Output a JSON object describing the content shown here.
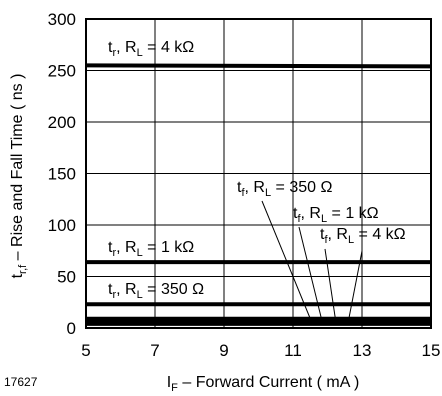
{
  "figure_id": "17627",
  "chart_data": {
    "type": "line",
    "xlabel": {
      "main": "I",
      "sub": "F",
      "rest": " – Forward Current ( mA )"
    },
    "ylabel": {
      "main": "t",
      "sub": "r,f",
      "rest": " – Rise and Fall Time ( ns )"
    },
    "xlim": [
      5,
      15
    ],
    "ylim": [
      0,
      300
    ],
    "x_ticks": [
      5,
      7,
      9,
      11,
      13,
      15
    ],
    "y_ticks": [
      0,
      50,
      100,
      150,
      200,
      250,
      300
    ],
    "grid": true,
    "series": [
      {
        "name": "tr, RL = 4 kΩ",
        "x": [
          5,
          15
        ],
        "y": [
          255,
          254
        ]
      },
      {
        "name": "tr, RL = 1 kΩ",
        "x": [
          5,
          15
        ],
        "y": [
          64,
          64
        ]
      },
      {
        "name": "tr, RL = 350 Ω",
        "x": [
          5,
          15
        ],
        "y": [
          23,
          23
        ]
      },
      {
        "name": "tf, RL = 350 Ω",
        "x": [
          5,
          15
        ],
        "y": [
          9,
          9
        ]
      },
      {
        "name": "tf, RL = 1 kΩ",
        "x": [
          5,
          15
        ],
        "y": [
          6,
          6
        ]
      },
      {
        "name": "tf, RL = 4 kΩ",
        "x": [
          5,
          15
        ],
        "y": [
          4,
          4
        ]
      }
    ],
    "annotations": [
      {
        "t": "t",
        "tsub": "r",
        "mid": ", R",
        "msub": "L",
        "rest": " = 4 kΩ"
      },
      {
        "t": "t",
        "tsub": "r",
        "mid": ", R",
        "msub": "L",
        "rest": " = 1 kΩ"
      },
      {
        "t": "t",
        "tsub": "r",
        "mid": ", R",
        "msub": "L",
        "rest": " = 350 Ω"
      },
      {
        "t": "t",
        "tsub": "f",
        "mid": ", R",
        "msub": "L",
        "rest": " = 350 Ω"
      },
      {
        "t": "t",
        "tsub": "f",
        "mid": ", R",
        "msub": "L",
        "rest": " = 1 kΩ"
      },
      {
        "t": "t",
        "tsub": "f",
        "mid": ", R",
        "msub": "L",
        "rest": " = 4 kΩ"
      }
    ]
  }
}
